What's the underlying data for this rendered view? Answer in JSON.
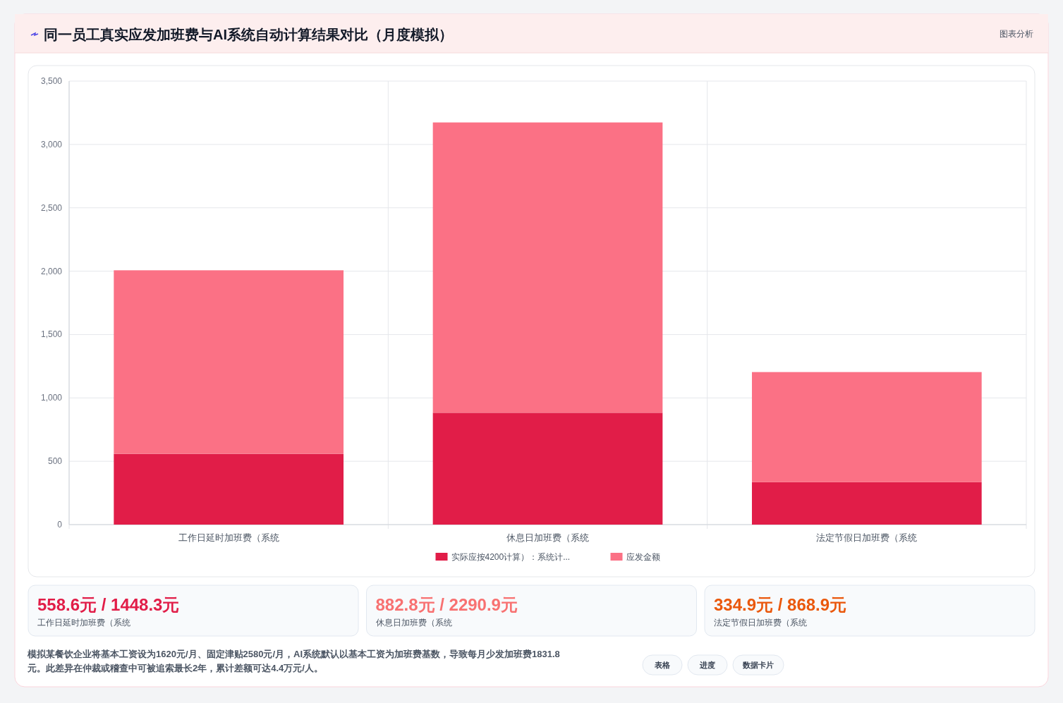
{
  "chart_data": {
    "type": "bar",
    "title": "同一员工真实应发加班费与AI系统自动计算结果对比（月度模拟）",
    "categories": [
      "工作日延时加班费（系统",
      "休息日加班费（系统",
      "法定节假日加班费（系统"
    ],
    "series": [
      {
        "name": "实际应按4200计算）：系统计...",
        "color": "#e11d48",
        "values": [
          558.6,
          882.8,
          334.9
        ]
      },
      {
        "name": "应发金额",
        "color": "#fb7185",
        "values": [
          1448.3,
          2290.9,
          868.9
        ]
      }
    ],
    "stacked": true,
    "ylim": [
      0,
      3500
    ],
    "yticks": [
      0,
      {
        "value": 500,
        "label": "500"
      },
      {
        "value": 1000,
        "label": "1,000"
      },
      {
        "value": 1500,
        "label": "1,500"
      },
      {
        "value": 2000,
        "label": "2,000"
      },
      {
        "value": 2500,
        "label": "2,500"
      },
      {
        "value": 3000,
        "label": "3,000"
      },
      {
        "value": 3500,
        "label": "3,500"
      }
    ],
    "grid": true,
    "legend": "bottom",
    "annotations": [
      "图表分析",
      "558.6元 / 1448.3元",
      "工作日延时加班费（系统",
      "882.8元 / 2290.9元",
      "休息日加班费（系统",
      "334.9元 / 868.9元",
      "法定节假日加班费（系统",
      "模拟某餐饮企业将基本工资设为1620元/月、固定津贴2580元/月，AI系统默认以基本工资为加班费基数，导致每月少发加班费1831.8元。此差异在仲裁或稽查中可被追索最长2年，累计差额可达4.4万元/人。",
      "表格",
      "进度",
      "数据卡片"
    ]
  }
}
